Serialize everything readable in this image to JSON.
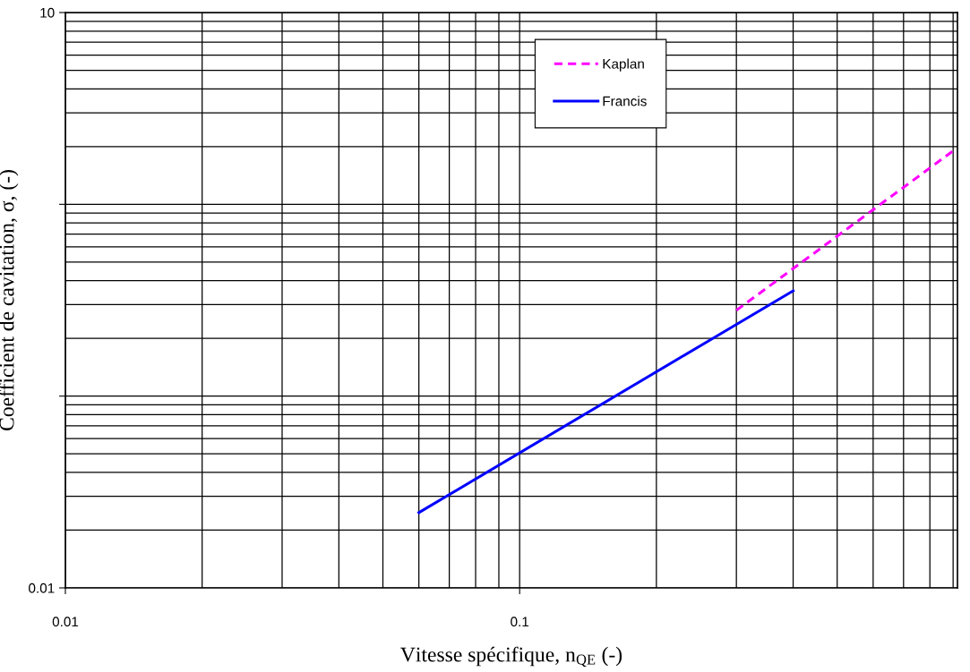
{
  "chart_data": {
    "type": "line",
    "xlabel": "Vitesse spécifique, n$_{QE}$ (-)",
    "ylabel": "Coefficient de cavitation, σ, (-)",
    "log": "xy",
    "xlim": [
      0.01,
      0.92
    ],
    "ylim": [
      0.01,
      10
    ],
    "xticks": [
      0.01,
      0.1
    ],
    "yticks": [
      0.01,
      {
        "value": 0.1,
        "label": null
      },
      {
        "value": 1,
        "label": null
      },
      10
    ],
    "grid": true,
    "legend": "top",
    "series": [
      {
        "name": "Kaplan",
        "color": "#ff00ff",
        "line_style": "dashed",
        "x": [
          0.3,
          0.9
        ],
        "values": [
          0.28,
          1.9
        ]
      },
      {
        "name": "Francis",
        "color": "#0000ff",
        "line_style": "solid",
        "x": [
          0.06,
          0.4
        ],
        "values": [
          0.0247,
          0.354
        ]
      }
    ]
  }
}
